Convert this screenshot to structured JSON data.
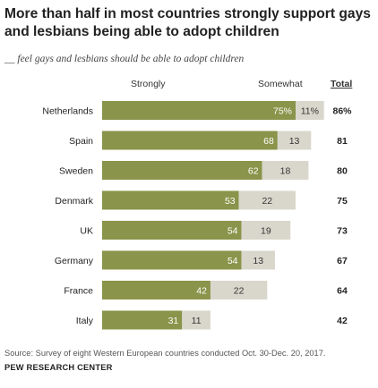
{
  "title": "More than half in most countries strongly support gays and lesbians being able to adopt children",
  "subtitle": "__ feel gays and lesbians should be able to adopt children",
  "headers": {
    "strongly": "Strongly",
    "somewhat": "Somewhat",
    "total": "Total"
  },
  "footer": {
    "source": "Source: Survey of eight Western European countries conducted Oct. 30-Dec. 20, 2017.",
    "brand": "PEW RESEARCH CENTER"
  },
  "colors": {
    "strongly": "#8a944a",
    "somewhat": "#d9d7cc",
    "strongly_label": "#ffffff",
    "somewhat_label": "#333333"
  },
  "chart_data": {
    "type": "bar",
    "orientation": "horizontal",
    "stacked": true,
    "categories": [
      "Netherlands",
      "Spain",
      "Sweden",
      "Denmark",
      "UK",
      "Germany",
      "France",
      "Italy"
    ],
    "series": [
      {
        "name": "Strongly",
        "values": [
          75,
          68,
          62,
          53,
          54,
          54,
          42,
          31
        ],
        "labels": [
          "75%",
          "68",
          "62",
          "53",
          "54",
          "54",
          "42",
          "31"
        ]
      },
      {
        "name": "Somewhat",
        "values": [
          11,
          13,
          18,
          22,
          19,
          13,
          22,
          11
        ],
        "labels": [
          "11%",
          "13",
          "18",
          "22",
          "19",
          "13",
          "22",
          "11"
        ]
      }
    ],
    "totals": [
      "86%",
      "81",
      "80",
      "75",
      "73",
      "67",
      "64",
      "42"
    ]
  }
}
